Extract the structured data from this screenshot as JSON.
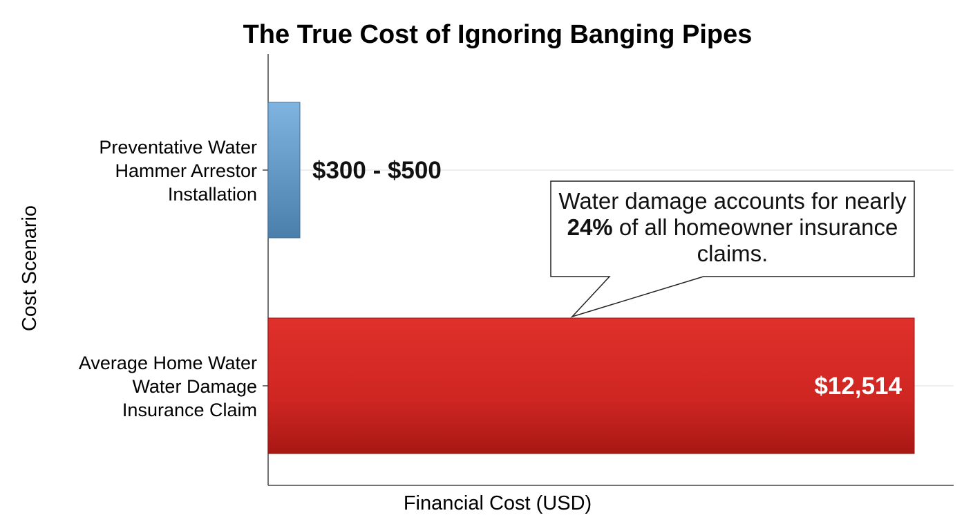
{
  "chart_data": {
    "type": "bar",
    "orientation": "horizontal",
    "title": "The True Cost of Ignoring Banging Pipes",
    "xlabel": "Financial Cost (USD)",
    "ylabel": "Cost Scenario",
    "grid": true,
    "categories": [
      [
        "Preventative Water",
        "Hammer Arrestor",
        "Installation"
      ],
      [
        "Average Home Water",
        "Water Damage",
        "Insurance Claim"
      ]
    ],
    "values": [
      500,
      12514
    ],
    "value_labels": [
      "$300 - $500",
      "$12,514"
    ],
    "xlim": [
      0,
      12514
    ],
    "colors": [
      "#6fa8d6",
      "#d92b26"
    ],
    "annotation": {
      "text_before": "Water damage accounts for nearly ",
      "text_emphasis": "24%",
      "text_after": " of all homeowner insurance claims."
    }
  }
}
